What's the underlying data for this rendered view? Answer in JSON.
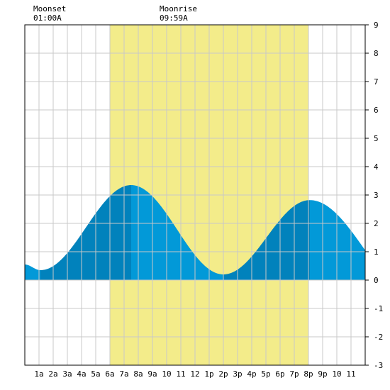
{
  "chart_data": {
    "type": "area",
    "title": "",
    "xlabel": "",
    "ylabel": "",
    "xlim": [
      0,
      24
    ],
    "ylim": [
      -3,
      9
    ],
    "x_ticks": [
      {
        "hour": 1,
        "label": "1a"
      },
      {
        "hour": 2,
        "label": "2a"
      },
      {
        "hour": 3,
        "label": "3a"
      },
      {
        "hour": 4,
        "label": "4a"
      },
      {
        "hour": 5,
        "label": "5a"
      },
      {
        "hour": 6,
        "label": "6a"
      },
      {
        "hour": 7,
        "label": "7a"
      },
      {
        "hour": 8,
        "label": "8a"
      },
      {
        "hour": 9,
        "label": "9a"
      },
      {
        "hour": 10,
        "label": "10"
      },
      {
        "hour": 11,
        "label": "11"
      },
      {
        "hour": 12,
        "label": "12"
      },
      {
        "hour": 13,
        "label": "1p"
      },
      {
        "hour": 14,
        "label": "2p"
      },
      {
        "hour": 15,
        "label": "3p"
      },
      {
        "hour": 16,
        "label": "4p"
      },
      {
        "hour": 17,
        "label": "5p"
      },
      {
        "hour": 18,
        "label": "6p"
      },
      {
        "hour": 19,
        "label": "7p"
      },
      {
        "hour": 20,
        "label": "8p"
      },
      {
        "hour": 21,
        "label": "9p"
      },
      {
        "hour": 22,
        "label": "10"
      },
      {
        "hour": 23,
        "label": "11"
      }
    ],
    "y_ticks": [
      -3,
      -2,
      -1,
      0,
      1,
      2,
      3,
      4,
      5,
      6,
      7,
      8,
      9
    ],
    "grid": true,
    "daylight": {
      "start_hour": 6,
      "end_hour": 20,
      "color": "#f3ec8a"
    },
    "extremes": [
      {
        "hour": 1.1,
        "height": 0.35,
        "kind": "low"
      },
      {
        "hour": 7.5,
        "height": 3.35,
        "kind": "high"
      },
      {
        "hour": 14.0,
        "height": 0.2,
        "kind": "low"
      },
      {
        "hour": 20.1,
        "height": 2.82,
        "kind": "high"
      }
    ],
    "curve_start": {
      "hour": 0,
      "height": 0.55
    },
    "curve_end": {
      "hour": 24,
      "height": 1.05
    },
    "colors": {
      "tide_fill": "#0299d8",
      "tide_fill_rising": "#0182bc",
      "grid": "#c8c8c8",
      "border": "#000000"
    },
    "annotations": [
      {
        "hour": 0.6,
        "line1": "Moonset",
        "line2": "01:00A"
      },
      {
        "hour": 9.5,
        "line1": "Moonrise",
        "line2": "09:59A"
      }
    ]
  }
}
